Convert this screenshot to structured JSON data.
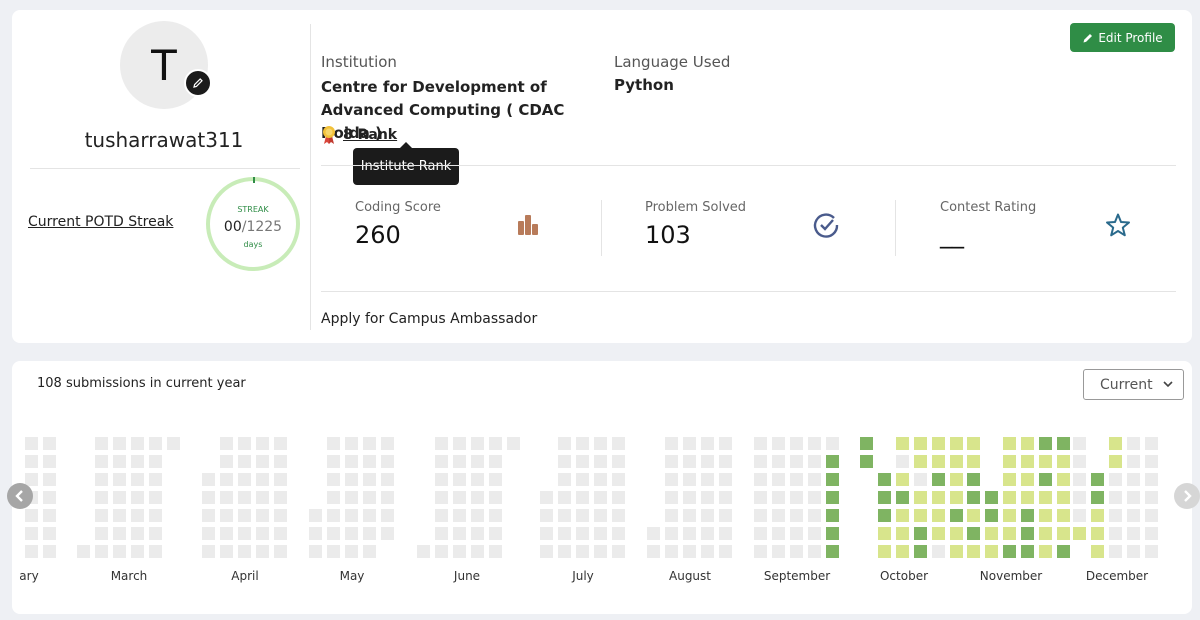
{
  "profile": {
    "avatar_letter": "T",
    "username": "tusharrawat311",
    "potd_label": "Current POTD Streak",
    "streak": {
      "label": "STREAK",
      "current": "00",
      "separator": "/",
      "total": "1225",
      "unit": "days"
    }
  },
  "details": {
    "institution_label": "Institution",
    "institution_value": "Centre for Development of Advanced Computing ( CDAC Noida )",
    "language_label": "Language Used",
    "language_value": "Python",
    "rank_text": "8 Rank",
    "rank_tooltip": "Institute Rank",
    "edit_button": "Edit Profile"
  },
  "stats": [
    {
      "label": "Coding Score",
      "value": "260",
      "icon": "bar-chart-icon",
      "color": "#f9e6dc"
    },
    {
      "label": "Problem Solved",
      "value": "103",
      "icon": "check-circle-icon",
      "color": "#e4e8f6"
    },
    {
      "label": "Contest Rating",
      "value": "__",
      "icon": "star-icon",
      "color": "#e2f1f8"
    }
  ],
  "ambassador_link": "Apply for Campus Ambassador",
  "heatmap": {
    "submissions_text": "108 submissions in current year",
    "year_select": "Current",
    "months": [
      "ary",
      "March",
      "April",
      "May",
      "June",
      "July",
      "August",
      "September",
      "October",
      "November",
      "December"
    ],
    "colors": {
      "empty": "#ebebeb",
      "light": "#d8e58c",
      "dark": "#7fb462"
    },
    "weeks": [
      "eeeeeee",
      "eeeeeee",
      "......e",
      "eeeeeee",
      "eeeeeee",
      "eeeeeee",
      "eeeeeee",
      "e......",
      "..eeeee",
      "eeeeeee",
      "eeeeeee",
      "eeeeeee",
      "eeeeeee",
      "....eee",
      "eeeeeee",
      "eeeeeee",
      "eeeeeee",
      "eeeeee.",
      "......e",
      "eeeeeee",
      "eeeeeee",
      "eeeeeee",
      "eeeeeee",
      "e......",
      "...eeee",
      "eeeeeee",
      "eeeeeee",
      "eeeeeee",
      "eeeeeee",
      ".....ee",
      "eeeeeee",
      "eeeeeee",
      "eeeeeee",
      "eeeeeee",
      "eeeeeee",
      "eeeeeee",
      "eeeeeee",
      "eeeeeee",
      "eddddddd",
      "dd.....",
      "..dddll",
      "leldlll",
      "llelldd",
      "lldllle",
      "lllldll",
      "llddldl",
      "...ddll",
      "lllllld",
      "llllddd",
      "dldllll",
      "dllllld",
      "eeeeel",
      "..ddlll",
      "lleeeee",
      "eeeeeee",
      "eeeeeee",
      "eeeeee."
    ]
  }
}
